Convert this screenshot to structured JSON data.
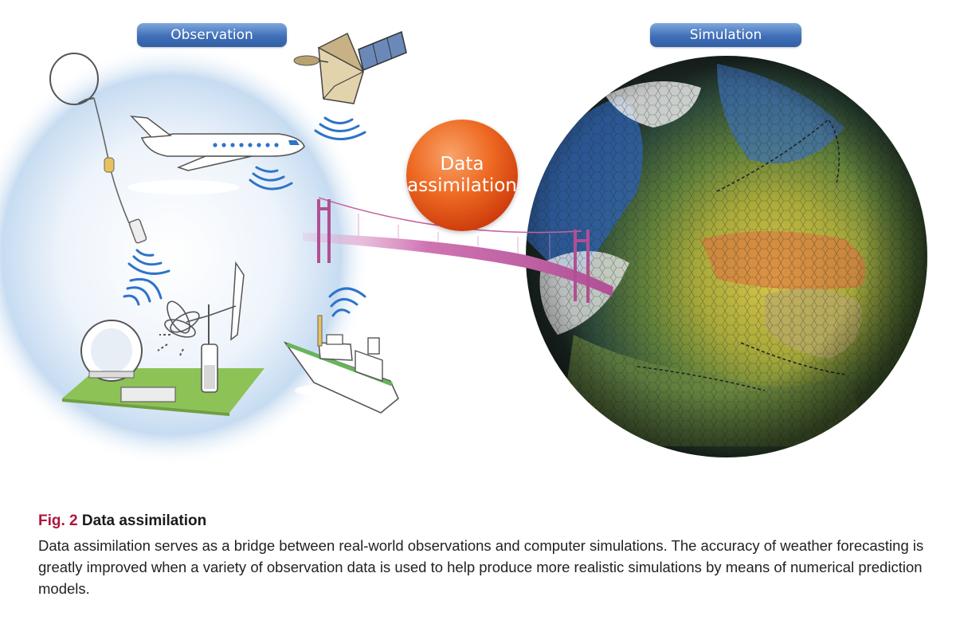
{
  "labels": {
    "observation": "Observation",
    "simulation": "Simulation",
    "data_assimilation_line1": "Data",
    "data_assimilation_line2": "assimilation"
  },
  "caption": {
    "fig_number": "Fig. 2",
    "fig_title": "Data assimilation",
    "body": "Data assimilation serves as a bridge between real-world observations and computer simulations. The accuracy of weather forecasting is greatly improved when a variety of observation data is used to help produce more realistic simulations by means of numerical prediction models."
  },
  "colors": {
    "pill_blue": "#3f6fb8",
    "assimilation_orange": "#e4561a",
    "bridge_pink": "#c8629c",
    "signal_blue": "#2d74c8",
    "fig_number_red": "#b0163c",
    "ground_green": "#8dc257"
  },
  "icons": [
    "weather-balloon-icon",
    "satellite-icon",
    "airplane-icon",
    "suspension-bridge-icon",
    "radar-dome-icon",
    "wind-profiler-icon",
    "weather-ship-icon",
    "globe-simulation-icon"
  ]
}
